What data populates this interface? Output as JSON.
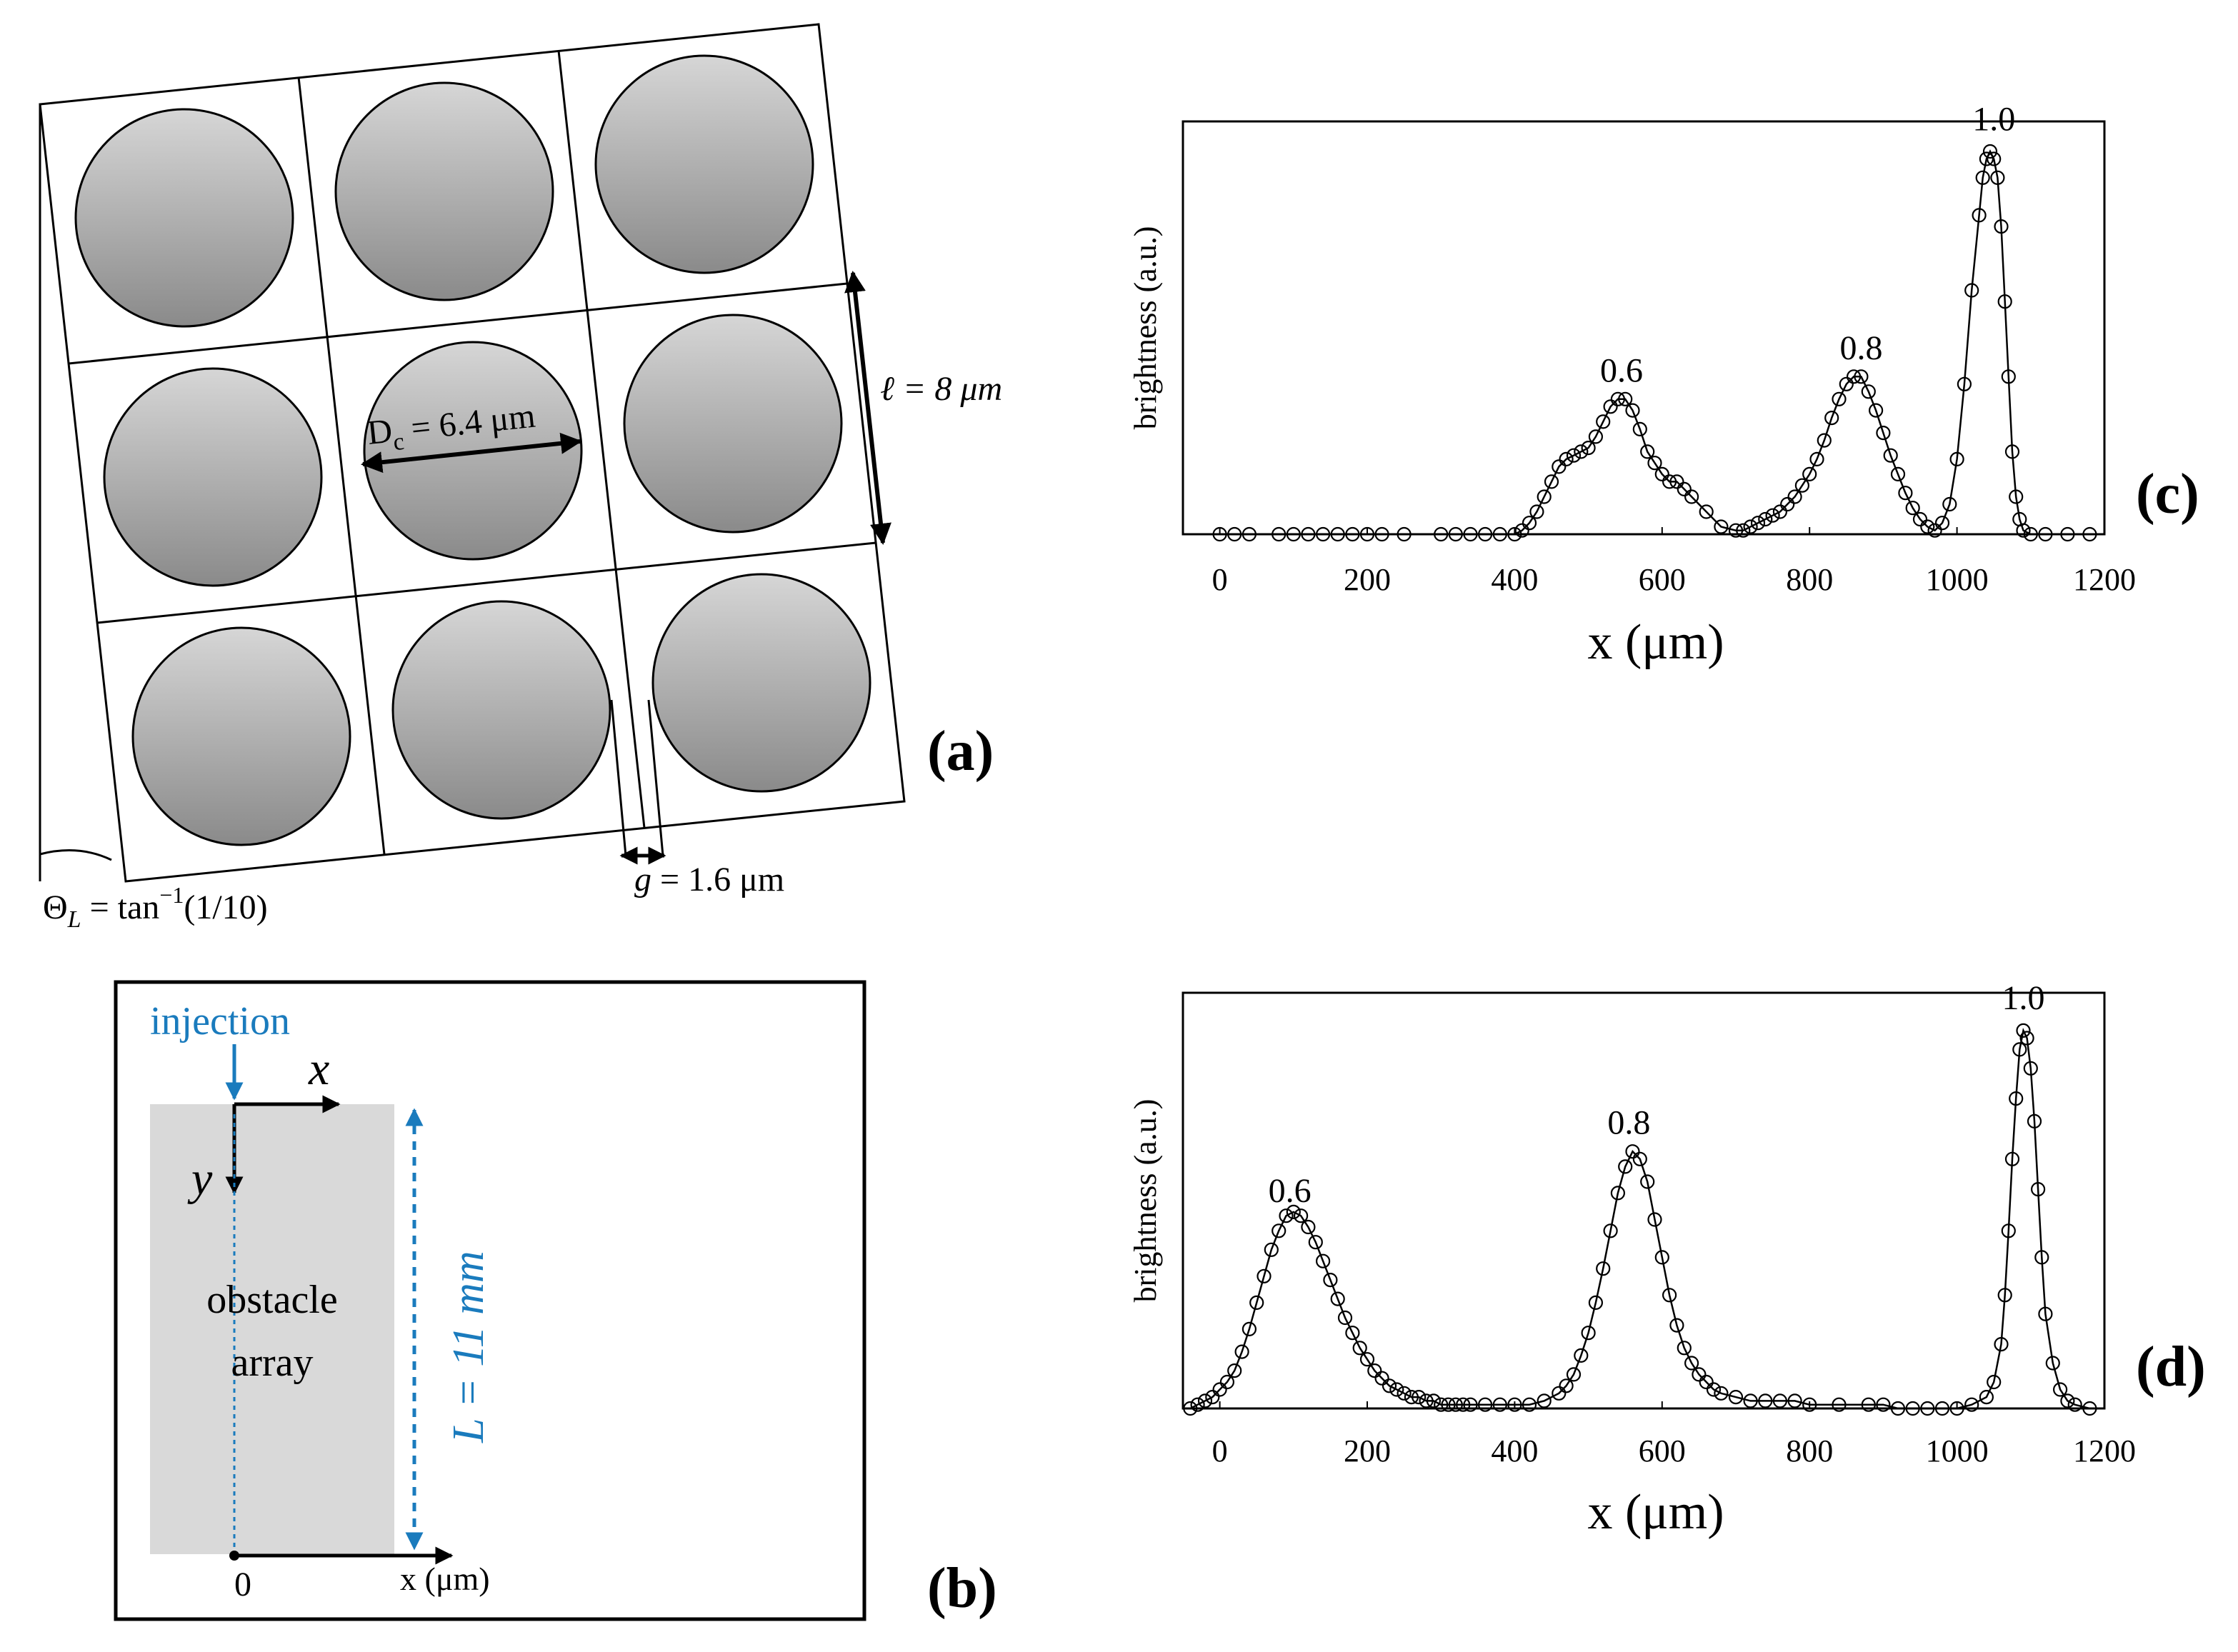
{
  "panel_a": {
    "label": "(a)",
    "post_diameter": "D",
    "post_diameter_sub": "c",
    "post_diameter_value": " = 6.4 μm",
    "row_shift": "ℓ = 8 μm",
    "gap_symbol": "g",
    "gap_value": " = 1.6 μm",
    "angle_prefix": "Θ",
    "angle_sub": "L",
    "angle_mid": " = tan",
    "angle_sup": "−1",
    "angle_value": "(1/10)"
  },
  "panel_b": {
    "label": "(b)",
    "injection": "injection",
    "axis_x": "x",
    "axis_y": "y",
    "region_line1": "obstacle",
    "region_line2": "array",
    "length": "L = 11 mm",
    "origin": "0",
    "x_unit": "x (μm)"
  },
  "colors": {
    "accent_blue": "#1a7bbd",
    "post_light": "#d6d6d6",
    "post_dark": "#8a8a8a",
    "region_gray": "#d9d9d9"
  },
  "chart_data": [
    {
      "id": "c",
      "type": "line",
      "label": "(c)",
      "title": "",
      "xlabel": "x (μm)",
      "ylabel": "brightness (a.u.)",
      "xlim": [
        -50,
        1200
      ],
      "ylim": [
        0,
        1.1
      ],
      "x_ticks": [
        "0",
        "200",
        "400",
        "600",
        "800",
        "1000",
        "1200"
      ],
      "peak_labels": [
        {
          "text": "0.6",
          "x": 545,
          "y": 0.38
        },
        {
          "text": "0.8",
          "x": 870,
          "y": 0.44
        },
        {
          "text": "1.0",
          "x": 1050,
          "y": 1.05
        }
      ],
      "series": [
        {
          "name": "brightness",
          "x": [
            0,
            20,
            40,
            80,
            100,
            120,
            140,
            160,
            180,
            200,
            220,
            250,
            300,
            320,
            340,
            360,
            380,
            400,
            410,
            420,
            430,
            440,
            450,
            460,
            470,
            480,
            490,
            500,
            510,
            520,
            530,
            540,
            550,
            560,
            570,
            580,
            590,
            600,
            610,
            620,
            630,
            640,
            660,
            680,
            700,
            710,
            720,
            730,
            740,
            750,
            760,
            770,
            780,
            790,
            800,
            810,
            820,
            830,
            840,
            850,
            860,
            870,
            880,
            890,
            900,
            910,
            920,
            930,
            940,
            950,
            960,
            970,
            980,
            990,
            1000,
            1010,
            1020,
            1030,
            1035,
            1040,
            1045,
            1050,
            1055,
            1060,
            1065,
            1070,
            1075,
            1080,
            1085,
            1090,
            1100,
            1120,
            1150,
            1180
          ],
          "y": [
            0,
            0,
            0,
            0,
            0,
            0,
            0,
            0,
            0,
            0,
            0,
            0,
            0,
            0,
            0,
            0,
            0,
            0,
            0.01,
            0.03,
            0.06,
            0.1,
            0.14,
            0.18,
            0.2,
            0.21,
            0.22,
            0.23,
            0.26,
            0.3,
            0.34,
            0.36,
            0.36,
            0.33,
            0.28,
            0.22,
            0.19,
            0.16,
            0.14,
            0.14,
            0.12,
            0.1,
            0.06,
            0.02,
            0.01,
            0.01,
            0.02,
            0.03,
            0.04,
            0.05,
            0.06,
            0.08,
            0.1,
            0.13,
            0.16,
            0.2,
            0.25,
            0.31,
            0.36,
            0.4,
            0.42,
            0.42,
            0.38,
            0.33,
            0.27,
            0.21,
            0.16,
            0.11,
            0.07,
            0.04,
            0.02,
            0.01,
            0.03,
            0.08,
            0.2,
            0.4,
            0.65,
            0.85,
            0.95,
            1.0,
            1.02,
            1.0,
            0.95,
            0.82,
            0.62,
            0.42,
            0.22,
            0.1,
            0.04,
            0.01,
            0,
            0,
            0,
            0
          ]
        }
      ]
    },
    {
      "id": "d",
      "type": "line",
      "label": "(d)",
      "title": "",
      "xlabel": "x (μm)",
      "ylabel": "brightness (a.u.)",
      "xlim": [
        -50,
        1200
      ],
      "ylim": [
        0,
        1.1
      ],
      "x_ticks": [
        "0",
        "200",
        "400",
        "600",
        "800",
        "1000",
        "1200"
      ],
      "peak_labels": [
        {
          "text": "0.6",
          "x": 95,
          "y": 0.52
        },
        {
          "text": "0.8",
          "x": 555,
          "y": 0.7
        },
        {
          "text": "1.0",
          "x": 1090,
          "y": 1.03
        }
      ],
      "series": [
        {
          "name": "brightness",
          "x": [
            -40,
            -30,
            -20,
            -10,
            0,
            10,
            20,
            30,
            40,
            50,
            60,
            70,
            80,
            90,
            100,
            110,
            120,
            130,
            140,
            150,
            160,
            170,
            180,
            190,
            200,
            210,
            220,
            230,
            240,
            250,
            260,
            270,
            280,
            290,
            300,
            310,
            320,
            330,
            340,
            360,
            380,
            400,
            420,
            440,
            460,
            470,
            480,
            490,
            500,
            510,
            520,
            530,
            540,
            550,
            560,
            570,
            580,
            590,
            600,
            610,
            620,
            630,
            640,
            650,
            660,
            670,
            680,
            700,
            720,
            740,
            760,
            780,
            800,
            840,
            880,
            900,
            920,
            940,
            960,
            980,
            1000,
            1020,
            1040,
            1050,
            1060,
            1065,
            1070,
            1075,
            1080,
            1085,
            1090,
            1095,
            1100,
            1105,
            1110,
            1115,
            1120,
            1130,
            1140,
            1150,
            1160,
            1180
          ],
          "y": [
            0,
            0.01,
            0.02,
            0.03,
            0.05,
            0.07,
            0.1,
            0.15,
            0.21,
            0.28,
            0.35,
            0.42,
            0.47,
            0.51,
            0.52,
            0.51,
            0.48,
            0.44,
            0.39,
            0.34,
            0.29,
            0.24,
            0.2,
            0.16,
            0.13,
            0.1,
            0.08,
            0.06,
            0.05,
            0.04,
            0.03,
            0.03,
            0.02,
            0.02,
            0.01,
            0.01,
            0.01,
            0.01,
            0.01,
            0.01,
            0.01,
            0.01,
            0.01,
            0.02,
            0.04,
            0.06,
            0.09,
            0.14,
            0.2,
            0.28,
            0.37,
            0.47,
            0.57,
            0.64,
            0.68,
            0.66,
            0.6,
            0.5,
            0.4,
            0.3,
            0.22,
            0.16,
            0.12,
            0.09,
            0.07,
            0.05,
            0.04,
            0.03,
            0.02,
            0.02,
            0.02,
            0.02,
            0.01,
            0.01,
            0.01,
            0.01,
            0,
            0,
            0,
            0,
            0,
            0.01,
            0.03,
            0.07,
            0.17,
            0.3,
            0.47,
            0.66,
            0.82,
            0.95,
            1.0,
            0.98,
            0.9,
            0.76,
            0.58,
            0.4,
            0.25,
            0.12,
            0.05,
            0.02,
            0.01,
            0
          ]
        }
      ]
    }
  ]
}
